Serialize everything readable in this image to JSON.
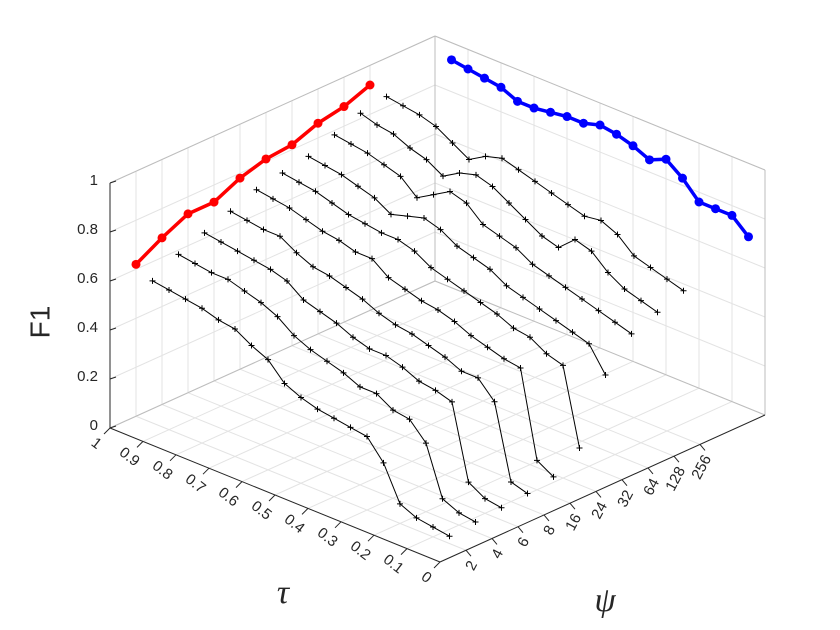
{
  "chart_data": {
    "type": "line3d",
    "xlabel": "τ",
    "ylabel": "ψ",
    "zlabel": "F1",
    "x": [
      0.95,
      0.9,
      0.85,
      0.8,
      0.75,
      0.7,
      0.65,
      0.6,
      0.55,
      0.5,
      0.45,
      0.4,
      0.35,
      0.3,
      0.25,
      0.2,
      0.15,
      0.1,
      0.05
    ],
    "xlim": [
      0,
      1
    ],
    "xticks": [
      0,
      0.1,
      0.2,
      0.3,
      0.4,
      0.5,
      0.6,
      0.7,
      0.8,
      0.9,
      1
    ],
    "yticks": [
      2,
      4,
      6,
      8,
      16,
      24,
      32,
      64,
      128,
      256
    ],
    "zlim": [
      0,
      1
    ],
    "zticks": [
      0,
      0.2,
      0.4,
      0.6,
      0.8,
      1
    ],
    "grid": true,
    "series": [
      {
        "color": "#000000",
        "values": [
          0.58,
          0.57,
          0.56,
          0.55,
          0.53,
          0.52,
          0.48,
          0.45,
          0.38,
          0.35,
          0.33,
          0.32,
          0.31,
          0.3,
          0.22,
          0.08,
          0.05,
          0.04,
          0.03
        ]
      },
      {
        "color": "#000000",
        "values": [
          0.64,
          0.63,
          0.62,
          0.62,
          0.6,
          0.58,
          0.55,
          0.5,
          0.47,
          0.45,
          0.43,
          0.4,
          0.4,
          0.36,
          0.35,
          0.28,
          0.08,
          0.05,
          0.04
        ]
      },
      {
        "color": "#000000",
        "values": [
          0.68,
          0.67,
          0.66,
          0.65,
          0.64,
          0.62,
          0.57,
          0.55,
          0.53,
          0.5,
          0.48,
          0.48,
          0.46,
          0.43,
          0.42,
          0.4,
          0.1,
          0.06,
          0.05
        ]
      },
      {
        "color": "#000000",
        "values": [
          0.72,
          0.71,
          0.7,
          0.7,
          0.66,
          0.63,
          0.62,
          0.6,
          0.58,
          0.55,
          0.53,
          0.52,
          0.5,
          0.48,
          0.45,
          0.45,
          0.38,
          0.08,
          0.06
        ]
      },
      {
        "color": "#000000",
        "values": [
          0.76,
          0.75,
          0.74,
          0.72,
          0.7,
          0.69,
          0.67,
          0.67,
          0.62,
          0.6,
          0.58,
          0.57,
          0.55,
          0.52,
          0.5,
          0.48,
          0.47,
          0.12,
          0.08
        ]
      },
      {
        "color": "#000000",
        "values": [
          0.78,
          0.77,
          0.76,
          0.74,
          0.72,
          0.71,
          0.7,
          0.7,
          0.68,
          0.64,
          0.62,
          0.6,
          0.58,
          0.56,
          0.53,
          0.52,
          0.48,
          0.46,
          0.15
        ]
      },
      {
        "color": "#000000",
        "values": [
          0.8,
          0.79,
          0.78,
          0.76,
          0.74,
          0.7,
          0.72,
          0.74,
          0.72,
          0.68,
          0.66,
          0.64,
          0.6,
          0.58,
          0.56,
          0.54,
          0.52,
          0.5,
          0.4
        ]
      },
      {
        "color": "#000000",
        "values": [
          0.84,
          0.83,
          0.82,
          0.8,
          0.78,
          0.72,
          0.76,
          0.8,
          0.78,
          0.72,
          0.7,
          0.68,
          0.64,
          0.62,
          0.6,
          0.58,
          0.56,
          0.54,
          0.52
        ]
      },
      {
        "color": "#000000",
        "values": [
          0.88,
          0.86,
          0.85,
          0.82,
          0.8,
          0.76,
          0.8,
          0.82,
          0.8,
          0.76,
          0.72,
          0.68,
          0.66,
          0.72,
          0.7,
          0.64,
          0.6,
          0.58,
          0.56
        ]
      },
      {
        "color": "#000000",
        "values": [
          0.9,
          0.89,
          0.88,
          0.86,
          0.82,
          0.78,
          0.82,
          0.84,
          0.82,
          0.8,
          0.78,
          0.76,
          0.74,
          0.75,
          0.72,
          0.66,
          0.64,
          0.62,
          0.6
        ]
      }
    ],
    "max_over_x": {
      "color": "#ff0000",
      "values": [
        0.62,
        0.68,
        0.73,
        0.73,
        0.78,
        0.81,
        0.82,
        0.86,
        0.88,
        0.92
      ]
    },
    "max_over_y": {
      "color": "#0000ff",
      "values": [
        0.93,
        0.92,
        0.91,
        0.9,
        0.87,
        0.87,
        0.88,
        0.89,
        0.89,
        0.91,
        0.9,
        0.88,
        0.85,
        0.88,
        0.83,
        0.76,
        0.76,
        0.76,
        0.7
      ]
    }
  }
}
